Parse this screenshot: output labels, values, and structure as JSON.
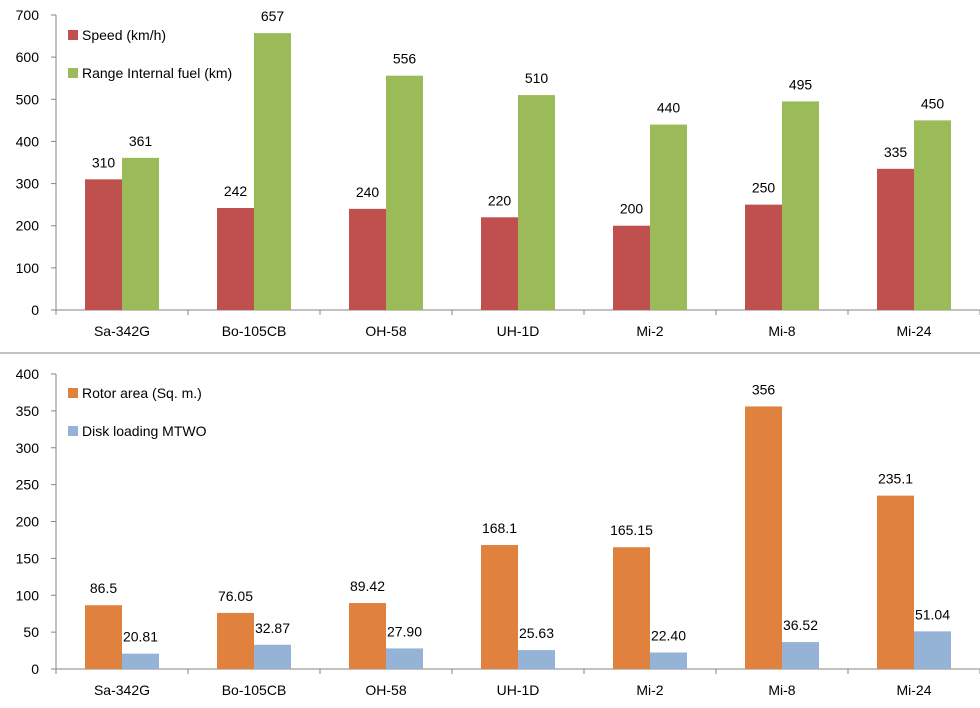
{
  "chart_data": [
    {
      "type": "bar",
      "categories": [
        "Sa-342G",
        "Bo-105CB",
        "OH-58",
        "UH-1D",
        "Mi-2",
        "Mi-8",
        "Mi-24"
      ],
      "series": [
        {
          "name": "Speed (km/h)",
          "values": [
            310,
            242,
            240,
            220,
            200,
            250,
            335
          ],
          "labels": [
            "310",
            "242",
            "240",
            "220",
            "200",
            "250",
            "335"
          ],
          "color": "#c0504d"
        },
        {
          "name": "Range Internal fuel (km)",
          "values": [
            361,
            657,
            556,
            510,
            440,
            495,
            450
          ],
          "labels": [
            "361",
            "657",
            "556",
            "510",
            "440",
            "495",
            "450"
          ],
          "color": "#9bbb59"
        }
      ],
      "ylim": [
        0,
        700
      ],
      "yticks": [
        "0",
        "100",
        "200",
        "300",
        "400",
        "500",
        "600",
        "700"
      ],
      "title": "",
      "xlabel": "",
      "ylabel": "",
      "legend": "top-left",
      "grid": false
    },
    {
      "type": "bar",
      "categories": [
        "Sa-342G",
        "Bo-105CB",
        "OH-58",
        "UH-1D",
        "Mi-2",
        "Mi-8",
        "Mi-24"
      ],
      "series": [
        {
          "name": "Rotor area (Sq. m.)",
          "values": [
            86.5,
            76.05,
            89.42,
            168.1,
            165.15,
            356,
            235.1
          ],
          "labels": [
            "86.5",
            "76.05",
            "89.42",
            "168.1",
            "165.15",
            "356",
            "235.1"
          ],
          "color": "#e0823d"
        },
        {
          "name": "Disk loading MTWO",
          "values": [
            20.81,
            32.87,
            27.9,
            25.63,
            22.4,
            36.52,
            51.04
          ],
          "labels": [
            "20.81",
            "32.87",
            "27.90",
            "25.63",
            "22.40",
            "36.52",
            "51.04"
          ],
          "color": "#95b3d7"
        }
      ],
      "ylim": [
        0,
        400
      ],
      "yticks": [
        "0",
        "50",
        "100",
        "150",
        "200",
        "250",
        "300",
        "350",
        "400"
      ],
      "title": "",
      "xlabel": "",
      "ylabel": "",
      "legend": "top-left",
      "grid": false
    }
  ]
}
